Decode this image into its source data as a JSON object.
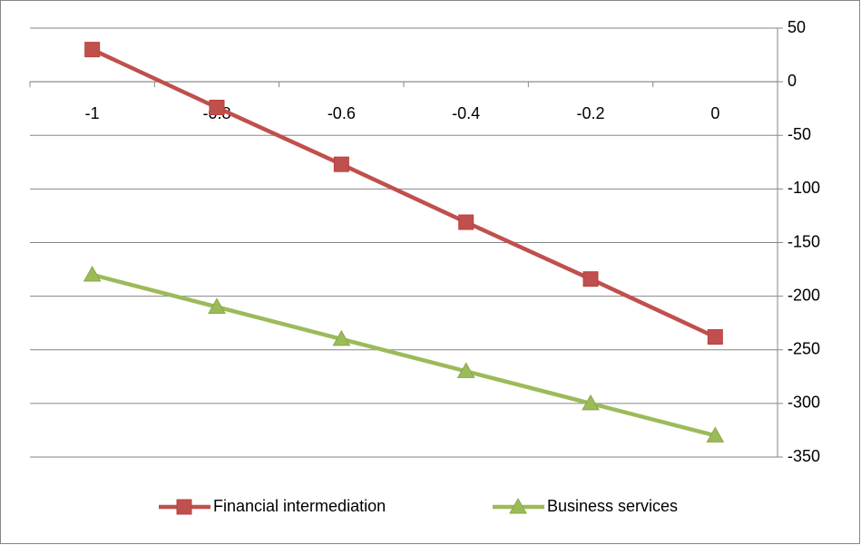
{
  "chart_data": {
    "type": "line",
    "categories": [
      "-1",
      "-0.8",
      "-0.6",
      "-0.4",
      "-0.2",
      "0"
    ],
    "series": [
      {
        "name": "Financial intermediation",
        "color": "#c0504d",
        "marker": "square",
        "values": [
          30,
          -24,
          -77,
          -131,
          -184,
          -238
        ]
      },
      {
        "name": "Business services",
        "color": "#9bbb59",
        "marker": "triangle",
        "values": [
          -180,
          -210,
          -240,
          -270,
          -300,
          -330
        ]
      }
    ],
    "ylim": [
      -350,
      50
    ],
    "yticks": [
      50,
      0,
      -50,
      -100,
      -150,
      -200,
      -250,
      -300,
      -350
    ],
    "grid": true,
    "legend": "bottom"
  }
}
